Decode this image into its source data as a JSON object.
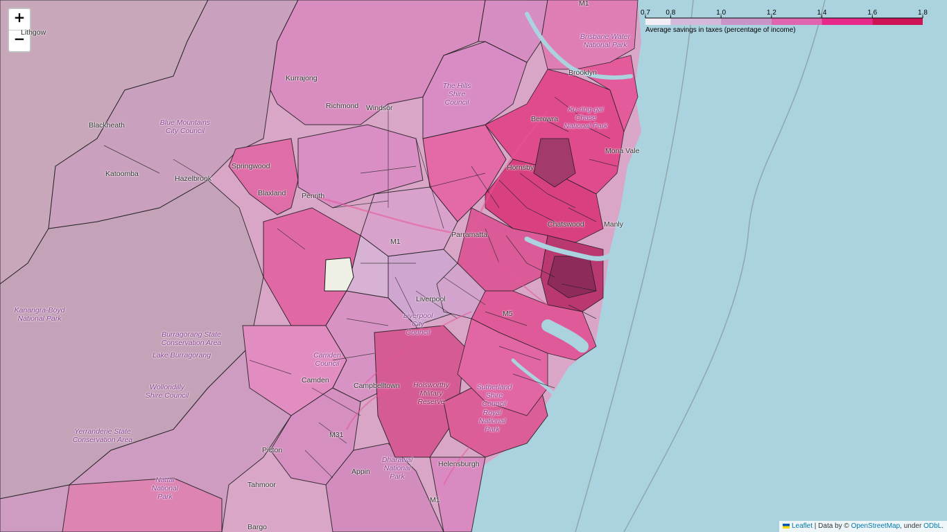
{
  "zoom": {
    "in_label": "+",
    "out_label": "−"
  },
  "legend": {
    "caption": "Average savings in taxes (percentage of income)",
    "ticks": [
      "0.7",
      "0.8",
      "1.0",
      "1.2",
      "1.4",
      "1.6",
      "1.8"
    ],
    "tick_values": [
      0.7,
      0.8,
      1.0,
      1.2,
      1.4,
      1.6,
      1.8
    ],
    "colors": [
      "#f1eef6",
      "#d4b9da",
      "#c994c7",
      "#df65b0",
      "#e7298a",
      "#ce1256",
      "#91003f"
    ]
  },
  "labels": {
    "lithgow": "Lithgow",
    "blackheath": "Blackheath",
    "katoomba": "Katoomba",
    "hazelbrook": "Hazelbrook",
    "springwood": "Springwood",
    "blaxland": "Blaxland",
    "kurrajong": "Kurrajong",
    "richmond": "Richmond",
    "windsor": "Windsor",
    "penrith": "Penrith",
    "parramatta": "Parramatta",
    "hornsby": "Hornsby",
    "berowra": "Berowra",
    "brooklyn": "Brooklyn",
    "mona_vale": "Mona Vale",
    "chatswood": "Chatswood",
    "manly": "Manly",
    "liverpool": "Liverpool",
    "camden": "Camden",
    "campbelltown": "Campbelltown",
    "picton": "Picton",
    "appin": "Appin",
    "tahmoor": "Tahmoor",
    "bargo": "Bargo",
    "helensburgh": "Helensburgh",
    "m1": "M1",
    "m5": "M5",
    "m31": "M31",
    "blue_mountains": "Blue Mountains City Council",
    "kanangra": "Kanangra-Boyd National Park",
    "burragorang": "Burragorang State Conservation Area",
    "lake_burragorang": "Lake Burragorang",
    "wollondilly": "Wollondilly Shire Council",
    "yerranderie": "Yerranderie State Conservation Area",
    "nattai": "Nattai National Park",
    "the_hills": "The Hills Shire Council",
    "ku_ring_gai": "Ku-ring-gai Chase National Park",
    "brisbane_water": "Brisbane Water National Park",
    "holsworthy": "Holsworthy Military Reserve",
    "sutherland": "Sutherland Shire Council",
    "royal": "Royal National Park",
    "dharawal": "Dharawal National Park",
    "camden_council": "Camden Council",
    "liverpool_council": "Liverpool City Council"
  },
  "attribution": {
    "leaflet": "Leaflet",
    "data_by": " | Data by © ",
    "osm": "OpenStreetMap",
    "under": ", under ",
    "odbl": "ODbL",
    "end": "."
  }
}
